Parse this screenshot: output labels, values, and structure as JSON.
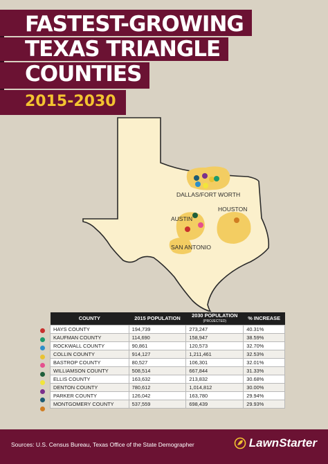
{
  "header": {
    "title_line1": "FASTEST-GROWING",
    "title_line2": "TEXAS TRIANGLE",
    "title_line3": "COUNTIES",
    "subtitle": "2015-2030"
  },
  "map": {
    "labels": {
      "dallas": "DALLAS/FORT WORTH",
      "houston": "HOUSTON",
      "austin": "AUSTIN",
      "san_antonio": "SAN ANTONIO"
    },
    "colors": {
      "state_fill": "#fbf0cc",
      "metro_fill": "#f3cd62"
    }
  },
  "table": {
    "headers": [
      "COUNTY",
      "2015 POPULATION",
      "2030 POPULATION",
      "% INCREASE"
    ],
    "header_sub": "(PROJECTED)",
    "rows": [
      {
        "color": "#c8302d",
        "county": "HAYS COUNTY",
        "pop2015": "194,739",
        "pop2030": "273,247",
        "increase": "40.31%"
      },
      {
        "color": "#1d9a6c",
        "county": "KAUFMAN COUNTY",
        "pop2015": "114,690",
        "pop2030": "158,947",
        "increase": "38.59%"
      },
      {
        "color": "#2e8fc9",
        "county": "ROCKWALL COUNTY",
        "pop2015": "90,861",
        "pop2030": "120,573",
        "increase": "32.70%"
      },
      {
        "color": "#e9c233",
        "county": "COLLIN COUNTY",
        "pop2015": "914,127",
        "pop2030": "1,211,461",
        "increase": "32.53%"
      },
      {
        "color": "#e5508e",
        "county": "BASTROP COUNTY",
        "pop2015": "80,527",
        "pop2030": "106,301",
        "increase": "32.01%"
      },
      {
        "color": "#1f5e3a",
        "county": "WILLIAMSON COUNTY",
        "pop2015": "508,514",
        "pop2030": "667,844",
        "increase": "31.33%"
      },
      {
        "color": "#f2e53a",
        "county": "ELLIS COUNTY",
        "pop2015": "163,632",
        "pop2030": "213,832",
        "increase": "30.68%"
      },
      {
        "color": "#7b2f8c",
        "county": "DENTON COUNTY",
        "pop2015": "780,612",
        "pop2030": "1,014,812",
        "increase": "30.00%"
      },
      {
        "color": "#1c5b73",
        "county": "PARKER COUNTY",
        "pop2015": "126,042",
        "pop2030": "163,780",
        "increase": "29.94%"
      },
      {
        "color": "#d07d22",
        "county": "MONTGOMERY COUNTY",
        "pop2015": "537,559",
        "pop2030": "698,439",
        "increase": "29.93%"
      }
    ]
  },
  "footer": {
    "source": "Sources: U.S. Census Bureau, Texas Office of the State Demographer",
    "logo": "LawnStarter"
  }
}
